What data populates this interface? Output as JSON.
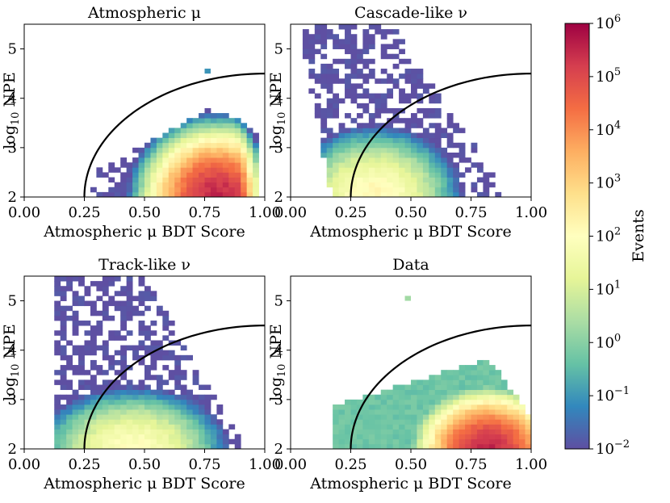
{
  "figure": {
    "colorbar": {
      "label": "Events",
      "scale": "log",
      "range": [
        0.01,
        1000000
      ],
      "ticks": [
        {
          "base": "10",
          "exp": "6"
        },
        {
          "base": "10",
          "exp": "5"
        },
        {
          "base": "10",
          "exp": "4"
        },
        {
          "base": "10",
          "exp": "3"
        },
        {
          "base": "10",
          "exp": "2"
        },
        {
          "base": "10",
          "exp": "1"
        },
        {
          "base": "10",
          "exp": "0"
        },
        {
          "base": "10",
          "exp": "−1"
        },
        {
          "base": "10",
          "exp": "−2"
        }
      ],
      "colormap": "Spectral_r",
      "stops": [
        "#5e4fa2",
        "#3288bd",
        "#66c2a5",
        "#abdda4",
        "#e6f598",
        "#ffffbf",
        "#fee08b",
        "#fdae61",
        "#f46d43",
        "#d53e4f",
        "#9e0142"
      ]
    },
    "axis_text": {
      "x_tick_labels": [
        "0.00",
        "0.25",
        "0.50",
        "0.75",
        "1.00"
      ],
      "y_tick_labels": [
        "2",
        "3",
        "4",
        "5"
      ],
      "xlabel": "Atmospheric μ BDT Score",
      "ylabel_base": "log",
      "ylabel_sub": "10",
      "ylabel_rest": " NPE"
    }
  },
  "chart_data": [
    {
      "type": "heatmap",
      "title": "Atmospheric μ",
      "xlabel": "Atmospheric μ BDT Score",
      "ylabel": "log10 NPE",
      "xlim": [
        0,
        1
      ],
      "ylim": [
        2,
        5.5
      ],
      "x_ticks": [
        0,
        0.25,
        0.5,
        0.75,
        1.0
      ],
      "y_ticks": [
        2,
        3,
        4,
        5
      ],
      "cut_curve": {
        "x_start": 0.25,
        "x_end": 1.0,
        "y_min": 2,
        "y_max": 4.5,
        "shape": "quarter-ellipse"
      },
      "bins": {
        "x_width": 0.025,
        "y_width": 0.1
      },
      "distribution": {
        "peak_x": 0.8,
        "peak_y": 2.0,
        "peak_log10_events": 5.5,
        "x_min": 0.28,
        "x_max": 0.98,
        "upper_y_at_peak": 4.2,
        "sparse_outliers_near": [
          0.76,
          4.55
        ]
      }
    },
    {
      "type": "heatmap",
      "title": "Cascade-like ν",
      "xlabel": "Atmospheric μ BDT Score",
      "ylabel": "log10 NPE",
      "xlim": [
        0,
        1
      ],
      "ylim": [
        2,
        5.5
      ],
      "x_ticks": [
        0,
        0.25,
        0.5,
        0.75,
        1.0
      ],
      "y_ticks": [
        2,
        3,
        4,
        5
      ],
      "cut_curve": {
        "x_start": 0.25,
        "x_end": 1.0,
        "y_min": 2,
        "y_max": 4.5,
        "shape": "quarter-ellipse"
      },
      "bins": {
        "x_width": 0.025,
        "y_width": 0.1
      },
      "distribution": {
        "peak_x": 0.35,
        "peak_y": 2.0,
        "peak_log10_events": 2.2,
        "x_min": 0.03,
        "x_max": 0.88,
        "upper_y": 5.5
      }
    },
    {
      "type": "heatmap",
      "title": "Track-like ν",
      "xlabel": "Atmospheric μ BDT Score",
      "ylabel": "log10 NPE",
      "xlim": [
        0,
        1
      ],
      "ylim": [
        2,
        5.5
      ],
      "x_ticks": [
        0,
        0.25,
        0.5,
        0.75,
        1.0
      ],
      "y_ticks": [
        2,
        3,
        4,
        5
      ],
      "cut_curve": {
        "x_start": 0.25,
        "x_end": 1.0,
        "y_min": 2,
        "y_max": 4.5,
        "shape": "quarter-ellipse"
      },
      "bins": {
        "x_width": 0.025,
        "y_width": 0.1
      },
      "distribution": {
        "peak_x": 0.45,
        "peak_y": 2.0,
        "peak_log10_events": 2.0,
        "x_min": 0.13,
        "x_max": 0.9,
        "upper_y": 5.5
      }
    },
    {
      "type": "heatmap",
      "title": "Data",
      "xlabel": "Atmospheric μ BDT Score",
      "ylabel": "log10 NPE",
      "xlim": [
        0,
        1
      ],
      "ylim": [
        2,
        5.5
      ],
      "x_ticks": [
        0,
        0.25,
        0.5,
        0.75,
        1.0
      ],
      "y_ticks": [
        2,
        3,
        4,
        5
      ],
      "cut_curve": {
        "x_start": 0.25,
        "x_end": 1.0,
        "y_min": 2,
        "y_max": 4.5,
        "shape": "quarter-ellipse"
      },
      "bins": {
        "x_width": 0.025,
        "y_width": 0.1
      },
      "distribution": {
        "peak_x": 0.82,
        "peak_y": 2.0,
        "peak_log10_events": 5.5,
        "x_min": 0.17,
        "x_max": 1.0,
        "upper_y_at_peak": 3.9,
        "sparse_outliers_near": [
          0.48,
          5.05
        ]
      }
    }
  ]
}
